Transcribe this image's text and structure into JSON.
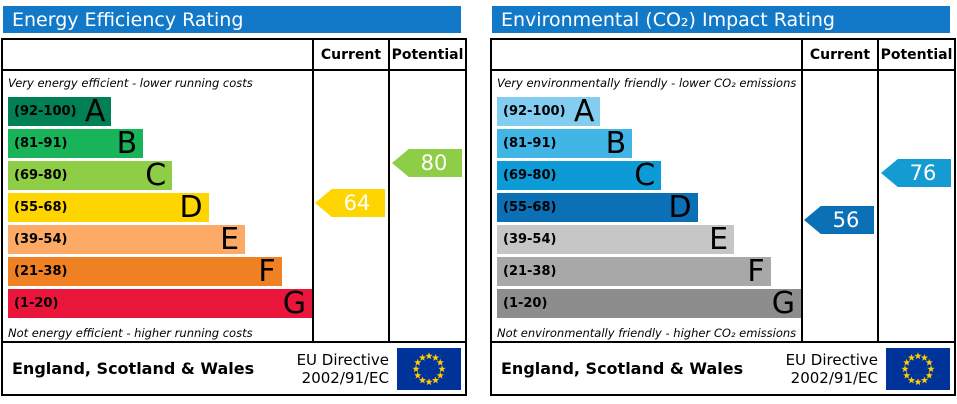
{
  "colors": {
    "header_blue": "#1279c8",
    "eu_flag_blue": "#003399",
    "eu_star_yellow": "#ffcc00"
  },
  "chart_data": [
    {
      "type": "bar",
      "variant": "epc-rating-scale",
      "title": "Energy Efficiency Rating",
      "columns": {
        "current": "Current",
        "potential": "Potential"
      },
      "top_note": "Very energy efficient - lower running costs",
      "bottom_note": "Not energy efficient - higher running costs",
      "scale": [
        1,
        100
      ],
      "bands": [
        {
          "letter": "A",
          "range": "(92-100)",
          "color": "#008054",
          "width_pct": 34
        },
        {
          "letter": "B",
          "range": "(81-91)",
          "color": "#19b459",
          "width_pct": 44.5
        },
        {
          "letter": "C",
          "range": "(69-80)",
          "color": "#8dce46",
          "width_pct": 54
        },
        {
          "letter": "D",
          "range": "(55-68)",
          "color": "#ffd500",
          "width_pct": 66
        },
        {
          "letter": "E",
          "range": "(39-54)",
          "color": "#fcaa65",
          "width_pct": 78
        },
        {
          "letter": "F",
          "range": "(21-38)",
          "color": "#ef8023",
          "width_pct": 90
        },
        {
          "letter": "G",
          "range": "(1-20)",
          "color": "#e9153b",
          "width_pct": 100
        }
      ],
      "current": {
        "value": 64,
        "band": "D",
        "color": "#ffd500"
      },
      "potential": {
        "value": 80,
        "band": "C",
        "color": "#8dce46"
      },
      "footer": {
        "region": "England, Scotland & Wales",
        "directive_line1": "EU Directive",
        "directive_line2": "2002/91/EC"
      }
    },
    {
      "type": "bar",
      "variant": "epc-rating-scale",
      "title": "Environmental (CO₂) Impact Rating",
      "columns": {
        "current": "Current",
        "potential": "Potential"
      },
      "top_note": "Very environmentally friendly - lower CO₂ emissions",
      "bottom_note": "Not environmentally friendly - higher CO₂ emissions",
      "scale": [
        1,
        100
      ],
      "bands": [
        {
          "letter": "A",
          "range": "(92-100)",
          "color": "#83cdf1",
          "width_pct": 34
        },
        {
          "letter": "B",
          "range": "(81-91)",
          "color": "#40b5e6",
          "width_pct": 44.5
        },
        {
          "letter": "C",
          "range": "(69-80)",
          "color": "#0d9bd7",
          "width_pct": 54
        },
        {
          "letter": "D",
          "range": "(55-68)",
          "color": "#0c70b6",
          "width_pct": 66
        },
        {
          "letter": "E",
          "range": "(39-54)",
          "color": "#c6c6c6",
          "width_pct": 78
        },
        {
          "letter": "F",
          "range": "(21-38)",
          "color": "#a8a8a8",
          "width_pct": 90
        },
        {
          "letter": "G",
          "range": "(1-20)",
          "color": "#8d8d8d",
          "width_pct": 100
        }
      ],
      "current": {
        "value": 56,
        "band": "D",
        "color": "#0c70b6"
      },
      "potential": {
        "value": 76,
        "band": "C",
        "color": "#149bd2"
      },
      "footer": {
        "region": "England, Scotland & Wales",
        "directive_line1": "EU Directive",
        "directive_line2": "2002/91/EC"
      }
    }
  ]
}
